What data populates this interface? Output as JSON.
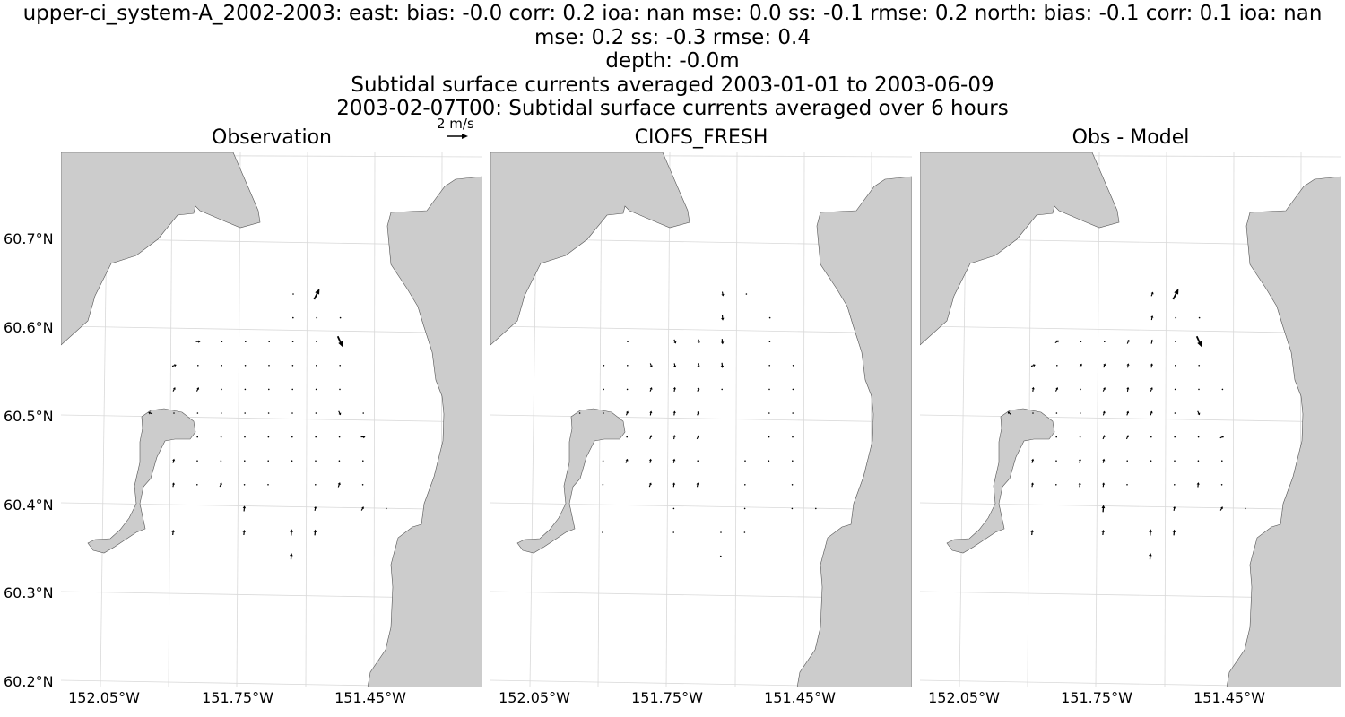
{
  "titles": {
    "line1": "upper-ci_system-A_2002-2003: east: bias: -0.0  corr: 0.2  ioa: nan  mse: 0.0  ss: -0.1  rmse: 0.2  north: bias: -0.1  corr: 0.1  ioa: nan",
    "line2": "mse: 0.2  ss: -0.3  rmse: 0.4",
    "line3": "depth: -0.0m",
    "line4": "Subtidal surface currents averaged 2003-01-01 to 2003-06-09",
    "line5": "2003-02-07T00: Subtidal surface currents averaged over 6 hours"
  },
  "quiver_key": {
    "label": "2 m/s"
  },
  "colors": {
    "land": "#cccccc",
    "coast": "#555555",
    "grid": "#d9d9d9",
    "arrow": "#000000"
  },
  "chart_data": {
    "type": "quiver-map",
    "x_axis": {
      "ticks": [
        "152.05°W",
        "151.75°W",
        "151.45°W"
      ]
    },
    "y_axis": {
      "ticks": [
        "60.7°N",
        "60.6°N",
        "60.5°N",
        "60.4°N",
        "60.3°N",
        "60.2°N"
      ]
    },
    "panels": [
      {
        "title": "Observation",
        "vectors": [
          [
            0,
            0,
            0.02,
            0
          ],
          [
            0,
            1,
            0.2,
            0.4
          ],
          [
            1,
            0,
            0.02,
            0
          ],
          [
            1,
            1,
            0.02,
            0
          ],
          [
            1,
            2,
            0.02,
            0
          ],
          [
            2,
            -4,
            0.05,
            0
          ],
          [
            2,
            -3,
            0.02,
            0
          ],
          [
            2,
            -2,
            0.02,
            0
          ],
          [
            2,
            -1,
            0.02,
            0
          ],
          [
            2,
            0,
            0.02,
            0
          ],
          [
            2,
            1,
            0.02,
            0
          ],
          [
            2,
            2,
            0.18,
            -0.4
          ],
          [
            3,
            -5,
            0.06,
            0.02
          ],
          [
            3,
            -4,
            0.03,
            0.02
          ],
          [
            3,
            -3,
            0.02,
            0.02
          ],
          [
            3,
            -2,
            0.02,
            0
          ],
          [
            3,
            -1,
            0.02,
            0
          ],
          [
            3,
            0,
            0.02,
            0
          ],
          [
            3,
            1,
            0.02,
            0
          ],
          [
            3,
            2,
            0.02,
            0
          ],
          [
            4,
            -5,
            0.02,
            0.04
          ],
          [
            4,
            -4,
            0.02,
            0.04
          ],
          [
            4,
            -3,
            0.02,
            0
          ],
          [
            4,
            -2,
            0.02,
            0
          ],
          [
            4,
            -1,
            0.02,
            0
          ],
          [
            4,
            0,
            0.02,
            0
          ],
          [
            4,
            1,
            0.02,
            0
          ],
          [
            4,
            2,
            0.02,
            0.02
          ],
          [
            5,
            -6,
            -0.06,
            0.02
          ],
          [
            5,
            -5,
            0.02,
            0.02
          ],
          [
            5,
            -4,
            0.02,
            0
          ],
          [
            5,
            -3,
            0.02,
            0
          ],
          [
            5,
            -2,
            0.02,
            0
          ],
          [
            5,
            -1,
            0.02,
            0
          ],
          [
            5,
            0,
            0.02,
            0
          ],
          [
            5,
            1,
            0.02,
            0
          ],
          [
            5,
            2,
            0.02,
            -0.04
          ],
          [
            5,
            3,
            0.02,
            0
          ],
          [
            6,
            -4,
            0.02,
            0
          ],
          [
            6,
            -3,
            0.02,
            0
          ],
          [
            6,
            -2,
            0.02,
            0
          ],
          [
            6,
            -1,
            0.02,
            0
          ],
          [
            6,
            0,
            0.02,
            0
          ],
          [
            6,
            1,
            0.02,
            0
          ],
          [
            6,
            2,
            0.02,
            0
          ],
          [
            6,
            3,
            0.04,
            0
          ],
          [
            7,
            -5,
            0.02,
            0.08
          ],
          [
            7,
            -4,
            0.02,
            0.02
          ],
          [
            7,
            -3,
            0.02,
            0
          ],
          [
            7,
            -2,
            0.02,
            0
          ],
          [
            7,
            -1,
            0.02,
            0
          ],
          [
            7,
            0,
            0.02,
            0
          ],
          [
            7,
            1,
            0.02,
            0
          ],
          [
            7,
            2,
            0.02,
            0
          ],
          [
            7,
            3,
            0.02,
            0
          ],
          [
            8,
            -5,
            0.02,
            0.1
          ],
          [
            8,
            -4,
            0.02,
            0.02
          ],
          [
            8,
            -3,
            0.02,
            0.04
          ],
          [
            8,
            -2,
            0.02,
            0
          ],
          [
            8,
            -1,
            0.02,
            0
          ],
          [
            8,
            1,
            0.02,
            0
          ],
          [
            8,
            2,
            0.06,
            0.18
          ],
          [
            8,
            3,
            0.02,
            0
          ],
          [
            9,
            -2,
            0.02,
            0.2
          ],
          [
            9,
            1,
            0.02,
            0.1
          ],
          [
            9,
            3,
            0.08,
            0.14
          ],
          [
            9,
            4,
            0.02,
            0
          ],
          [
            10,
            -5,
            0.02,
            0.2
          ],
          [
            10,
            -2,
            0.02,
            0.2
          ],
          [
            10,
            0,
            0.02,
            0.24
          ],
          [
            10,
            1,
            0.02,
            0.22
          ],
          [
            11,
            0,
            0.02,
            0.24
          ]
        ]
      },
      {
        "title": "CIOFS_FRESH",
        "vectors": [
          [
            0,
            0,
            0.02,
            -0.1
          ],
          [
            0,
            1,
            0.02,
            0
          ],
          [
            1,
            0,
            0.02,
            -0.2
          ],
          [
            1,
            2,
            0.02,
            0
          ],
          [
            2,
            -4,
            0.02,
            0
          ],
          [
            2,
            -2,
            0.02,
            -0.05
          ],
          [
            2,
            -1,
            0.02,
            -0.1
          ],
          [
            2,
            0,
            0.02,
            -0.2
          ],
          [
            2,
            2,
            0.02,
            0
          ],
          [
            3,
            -5,
            0.02,
            0
          ],
          [
            3,
            -4,
            0.02,
            0
          ],
          [
            3,
            -3,
            0.02,
            -0.05
          ],
          [
            3,
            -2,
            0.02,
            -0.1
          ],
          [
            3,
            -1,
            0.02,
            -0.1
          ],
          [
            3,
            0,
            0.02,
            -0.2
          ],
          [
            3,
            2,
            0.02,
            0
          ],
          [
            3,
            3,
            0.02,
            0
          ],
          [
            4,
            -5,
            0.02,
            0
          ],
          [
            4,
            -4,
            0.02,
            0
          ],
          [
            4,
            -3,
            0.02,
            0.05
          ],
          [
            4,
            -2,
            0.02,
            0.12
          ],
          [
            4,
            -1,
            0.02,
            0.05
          ],
          [
            4,
            0,
            0.02,
            0
          ],
          [
            4,
            2,
            0.02,
            0
          ],
          [
            4,
            3,
            0.02,
            0
          ],
          [
            5,
            -6,
            -0.02,
            0.02
          ],
          [
            5,
            -5,
            0.02,
            0
          ],
          [
            5,
            -4,
            0.02,
            0.05
          ],
          [
            5,
            -3,
            0.02,
            0.1
          ],
          [
            5,
            -2,
            0.02,
            0.12
          ],
          [
            5,
            -1,
            0.02,
            0.05
          ],
          [
            5,
            2,
            0.02,
            0
          ],
          [
            5,
            3,
            0.02,
            0
          ],
          [
            6,
            -4,
            0.02,
            0
          ],
          [
            6,
            -3,
            0.02,
            0.05
          ],
          [
            6,
            -2,
            0.02,
            0.12
          ],
          [
            6,
            -1,
            0.02,
            0.04
          ],
          [
            6,
            2,
            0.02,
            0
          ],
          [
            6,
            3,
            0.02,
            0
          ],
          [
            7,
            -5,
            0.02,
            0
          ],
          [
            7,
            -4,
            0.02,
            0.05
          ],
          [
            7,
            -3,
            0.02,
            0.12
          ],
          [
            7,
            -2,
            0.02,
            0.12
          ],
          [
            7,
            -1,
            0.02,
            0
          ],
          [
            7,
            1,
            0.02,
            0
          ],
          [
            7,
            2,
            0.02,
            0
          ],
          [
            7,
            3,
            0.02,
            0
          ],
          [
            8,
            -5,
            0.02,
            0
          ],
          [
            8,
            -3,
            0.02,
            0.05
          ],
          [
            8,
            -2,
            0.02,
            0.15
          ],
          [
            8,
            -1,
            0.02,
            0.1
          ],
          [
            8,
            1,
            0.02,
            0
          ],
          [
            8,
            3,
            0.02,
            0
          ],
          [
            9,
            -2,
            0.02,
            0
          ],
          [
            9,
            1,
            0.02,
            0
          ],
          [
            9,
            3,
            0.02,
            0
          ],
          [
            9,
            4,
            0.02,
            0
          ],
          [
            10,
            -5,
            0.02,
            0
          ],
          [
            10,
            -2,
            0.02,
            0
          ],
          [
            10,
            0,
            0.02,
            0
          ],
          [
            10,
            1,
            0.02,
            0
          ],
          [
            11,
            0,
            0.02,
            0
          ]
        ]
      },
      {
        "title": "Obs - Model",
        "vectors": [
          [
            0,
            0,
            0.02,
            0.05
          ],
          [
            0,
            1,
            0.2,
            0.4
          ],
          [
            1,
            0,
            0.02,
            0.1
          ],
          [
            1,
            1,
            0.02,
            0
          ],
          [
            1,
            2,
            0.02,
            0
          ],
          [
            2,
            -4,
            0.06,
            0.04
          ],
          [
            2,
            -3,
            0.02,
            0.02
          ],
          [
            2,
            -2,
            0.02,
            0.02
          ],
          [
            2,
            -1,
            0.02,
            0.05
          ],
          [
            2,
            0,
            0.02,
            0.1
          ],
          [
            2,
            1,
            0.02,
            0
          ],
          [
            2,
            2,
            0.18,
            -0.4
          ],
          [
            3,
            -5,
            0.06,
            0.02
          ],
          [
            3,
            -4,
            0.03,
            0.02
          ],
          [
            3,
            -3,
            0.04,
            0.06
          ],
          [
            3,
            -2,
            0.02,
            0.05
          ],
          [
            3,
            -1,
            0.02,
            0.1
          ],
          [
            3,
            0,
            0.02,
            0.1
          ],
          [
            3,
            1,
            0.02,
            0
          ],
          [
            3,
            2,
            0.02,
            0
          ],
          [
            4,
            -5,
            0.02,
            0.12
          ],
          [
            4,
            -4,
            0.02,
            0.04
          ],
          [
            4,
            -3,
            0.02,
            0.02
          ],
          [
            4,
            -2,
            0.02,
            0.04
          ],
          [
            4,
            -1,
            0.02,
            0.15
          ],
          [
            4,
            0,
            0.02,
            0.05
          ],
          [
            4,
            1,
            0.02,
            0
          ],
          [
            4,
            2,
            0.02,
            0
          ],
          [
            4,
            3,
            0.02,
            0
          ],
          [
            5,
            -6,
            -0.1,
            0.08
          ],
          [
            5,
            -5,
            0.02,
            0.02
          ],
          [
            5,
            -4,
            0.02,
            0.02
          ],
          [
            5,
            -3,
            0.02,
            0.02
          ],
          [
            5,
            -2,
            0.02,
            0.06
          ],
          [
            5,
            -1,
            0.02,
            0.06
          ],
          [
            5,
            0,
            0.02,
            0.05
          ],
          [
            5,
            1,
            0.02,
            0
          ],
          [
            5,
            2,
            0.02,
            -0.04
          ],
          [
            6,
            -4,
            0.02,
            0
          ],
          [
            6,
            -3,
            0.02,
            0.02
          ],
          [
            6,
            -2,
            0.02,
            0.05
          ],
          [
            6,
            -1,
            0.02,
            0.05
          ],
          [
            6,
            0,
            0.02,
            0.02
          ],
          [
            6,
            1,
            0.02,
            0
          ],
          [
            6,
            2,
            0.02,
            0
          ],
          [
            6,
            3,
            0.04,
            0.02
          ],
          [
            7,
            -5,
            0.02,
            0.08
          ],
          [
            7,
            -4,
            0.02,
            0.02
          ],
          [
            7,
            -3,
            0.02,
            0.12
          ],
          [
            7,
            -2,
            0.02,
            0.1
          ],
          [
            7,
            -1,
            0.02,
            0.02
          ],
          [
            7,
            0,
            0.02,
            0
          ],
          [
            7,
            1,
            0.02,
            0
          ],
          [
            7,
            2,
            0.02,
            0
          ],
          [
            7,
            3,
            0.02,
            0
          ],
          [
            8,
            -5,
            0.02,
            0.1
          ],
          [
            8,
            -4,
            0.02,
            0.02
          ],
          [
            8,
            -3,
            0.02,
            0.16
          ],
          [
            8,
            -2,
            0.02,
            0.14
          ],
          [
            8,
            -1,
            0.02,
            0
          ],
          [
            8,
            1,
            0.02,
            0
          ],
          [
            8,
            2,
            0.02,
            0.18
          ],
          [
            8,
            3,
            0.02,
            0
          ],
          [
            9,
            -2,
            0.02,
            0.26
          ],
          [
            9,
            1,
            0.02,
            0.1
          ],
          [
            9,
            3,
            0.08,
            0.14
          ],
          [
            9,
            4,
            0.02,
            0
          ],
          [
            10,
            -5,
            0.02,
            0.2
          ],
          [
            10,
            -2,
            0.02,
            0.2
          ],
          [
            10,
            0,
            0.02,
            0.24
          ],
          [
            10,
            1,
            0.02,
            0.22
          ],
          [
            11,
            0,
            0.02,
            0.24
          ]
        ]
      }
    ]
  }
}
